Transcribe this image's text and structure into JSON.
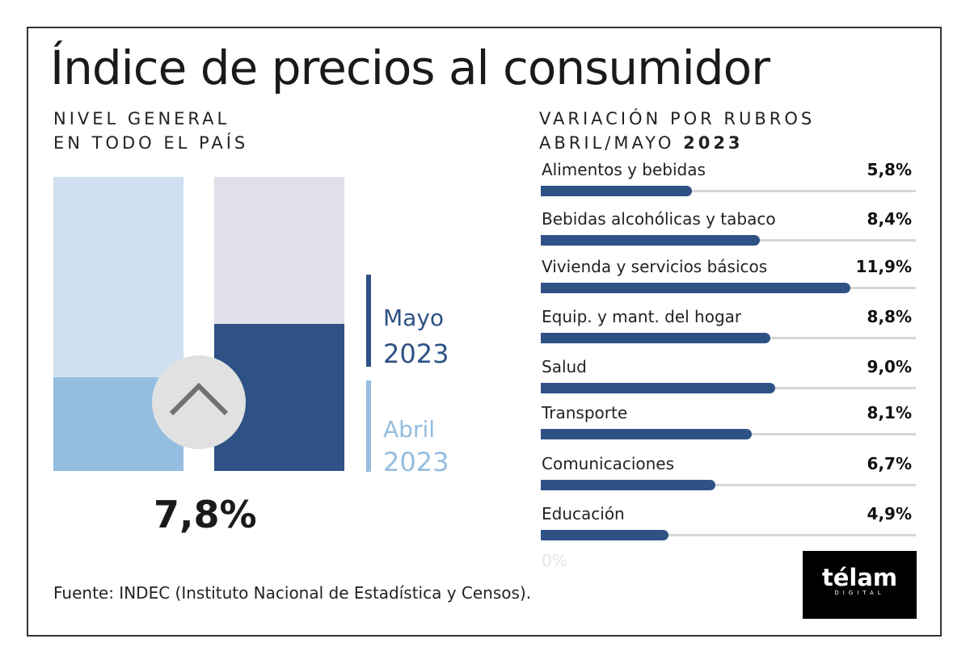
{
  "title": "Índice de precios al consumidor",
  "left": {
    "subtitle_line1": "NIVEL GENERAL",
    "subtitle_line2": "EN TODO EL PAÍS",
    "headline_value": "7,8%",
    "legend": [
      {
        "month": "Mayo",
        "year": "2023",
        "color": "#2e5286"
      },
      {
        "month": "Abril",
        "year": "2023",
        "color": "#94bde0"
      }
    ]
  },
  "right": {
    "subtitle_line1": "VARIACIÓN POR RUBROS",
    "subtitle_line2_prefix": "ABRIL/MAYO",
    "subtitle_line2_year": "2023",
    "zero_label": "0%"
  },
  "source": "Fuente: INDEC (Instituto Nacional de Estadística y Censos).",
  "logo": {
    "name": "télam",
    "sub": "DIGITAL"
  },
  "chart_data": [
    {
      "type": "bar",
      "title": "Nivel general en todo el país",
      "categories": [
        "Abril 2023",
        "Mayo 2023"
      ],
      "fill_fraction": [
        0.32,
        0.5
      ],
      "colors": {
        "abril_fill": "#94bde0",
        "abril_bg": "#cfe1f0",
        "mayo_fill": "#2e5286",
        "mayo_bg": "#e0e0ea"
      },
      "labels": {
        "mayo_value": "7,8%"
      }
    },
    {
      "type": "bar",
      "orientation": "horizontal",
      "title": "Variación por rubros abril/mayo 2023",
      "xlim": [
        0,
        14.4
      ],
      "categories": [
        "Alimentos y bebidas",
        "Bebidas alcohólicas y tabaco",
        "Vivienda y servicios básicos",
        "Equip. y mant. del hogar",
        "Salud",
        "Transporte",
        "Comunicaciones",
        "Educación"
      ],
      "values": [
        5.8,
        8.4,
        11.9,
        8.8,
        9.0,
        8.1,
        6.7,
        4.9
      ],
      "value_labels": [
        "5,8%",
        "8,4%",
        "11,9%",
        "8,8%",
        "9,0%",
        "8,1%",
        "6,7%",
        "4,9%"
      ],
      "color": "#2e5286"
    }
  ]
}
